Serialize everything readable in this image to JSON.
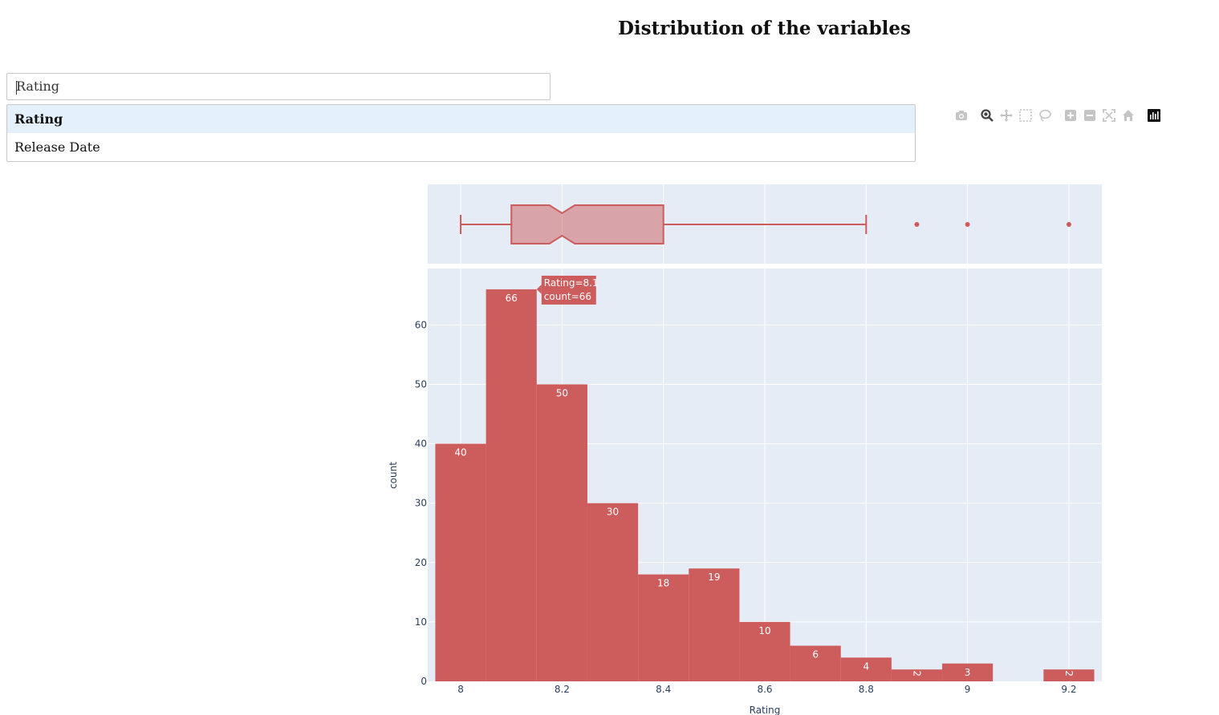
{
  "page": {
    "title": "Distribution of the variables"
  },
  "dropdown": {
    "value": "Rating",
    "options": [
      {
        "label": "Rating"
      },
      {
        "label": "Release Date"
      }
    ]
  },
  "modebar": {
    "icons": [
      "camera-icon",
      "zoom-icon",
      "pan-icon",
      "box-select-icon",
      "lasso-select-icon",
      "zoom-in-icon",
      "zoom-out-icon",
      "autoscale-icon",
      "reset-axes-icon",
      "plotly-logo-icon"
    ]
  },
  "colors": {
    "bar": "#cd5c5c",
    "plot_bg": "#e5ecf6",
    "axis_text": "#2a3f5f",
    "grid": "#ffffff"
  },
  "chart_data": {
    "type": "bar",
    "xlabel": "Rating",
    "ylabel": "count",
    "xlim": [
      7.935,
      9.265
    ],
    "ylim": [
      0,
      69.5
    ],
    "x_ticks": [
      8,
      8.2,
      8.4,
      8.6,
      8.8,
      9,
      9.2
    ],
    "x_tick_labels": [
      "8",
      "8.2",
      "8.4",
      "8.6",
      "8.8",
      "9",
      "9.2"
    ],
    "y_ticks": [
      0,
      10,
      20,
      30,
      40,
      50,
      60
    ],
    "y_tick_labels": [
      "0",
      "10",
      "20",
      "30",
      "40",
      "50",
      "60"
    ],
    "histogram": {
      "bin_width": 0.1,
      "bins": [
        {
          "x0": 7.95,
          "x1": 8.05,
          "count": 40,
          "label": "40"
        },
        {
          "x0": 8.05,
          "x1": 8.15,
          "count": 66,
          "label": "66"
        },
        {
          "x0": 8.15,
          "x1": 8.25,
          "count": 50,
          "label": "50"
        },
        {
          "x0": 8.25,
          "x1": 8.35,
          "count": 30,
          "label": "30"
        },
        {
          "x0": 8.35,
          "x1": 8.45,
          "count": 18,
          "label": "18"
        },
        {
          "x0": 8.45,
          "x1": 8.55,
          "count": 19,
          "label": "19"
        },
        {
          "x0": 8.55,
          "x1": 8.65,
          "count": 10,
          "label": "10"
        },
        {
          "x0": 8.65,
          "x1": 8.75,
          "count": 6,
          "label": "6"
        },
        {
          "x0": 8.75,
          "x1": 8.85,
          "count": 4,
          "label": "4"
        },
        {
          "x0": 8.85,
          "x1": 8.95,
          "count": 2,
          "label": "2"
        },
        {
          "x0": 8.95,
          "x1": 9.05,
          "count": 3,
          "label": "3"
        },
        {
          "x0": 9.15,
          "x1": 9.25,
          "count": 2,
          "label": "2"
        }
      ]
    },
    "boxplot": {
      "notched": true,
      "lower_fence": 8.0,
      "q1": 8.1,
      "median": 8.2,
      "q3": 8.4,
      "upper_fence": 8.8,
      "notch_low": 8.175,
      "notch_high": 8.225,
      "outliers": [
        8.9,
        9.0,
        9.2
      ]
    },
    "hover": {
      "line1": "Rating=8.1",
      "line2": "count=66",
      "bin_index": 1
    }
  }
}
